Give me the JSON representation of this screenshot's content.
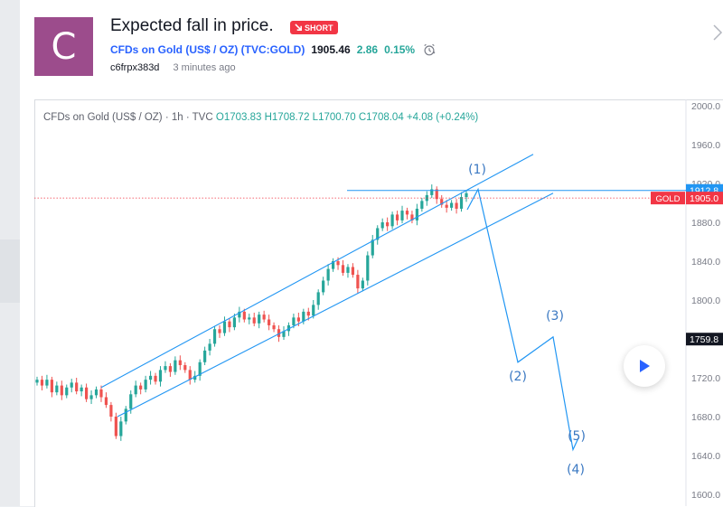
{
  "idea": {
    "avatar_letter": "C",
    "title": "Expected fall in price.",
    "badge": "SHORT",
    "badge_icon": "arrow-down-right-icon",
    "symbol": "CFDs on Gold (US$ / OZ) (TVC:GOLD)",
    "price": "1905.46",
    "change": "2.86",
    "change_pct": "0.15%",
    "author": "c6frpx383d",
    "time": "3 minutes ago"
  },
  "colors": {
    "up": "#26a69a",
    "down": "#ef5350",
    "line": "#2196f3",
    "wave_label": "#3a78c2",
    "price_tag": "#f23645",
    "accent": "#2962ff",
    "badge": "#f23645"
  },
  "chart_data": {
    "type": "candlestick",
    "instrument": "CFDs on Gold (US$ / OZ) · 1h · TVC",
    "ohlc": {
      "o": "O1703.83",
      "h": "H1708.72",
      "l": "L1700.70",
      "c": "C1708.04",
      "chg": "+4.08 (+0.24%)"
    },
    "y_axis": {
      "ticks": [
        "2000.0",
        "1960.0",
        "1920.0",
        "1880.0",
        "1840.0",
        "1800.0",
        "1760.0",
        "1720.0",
        "1680.0",
        "1640.0",
        "1600.0"
      ],
      "range": [
        1600,
        2000
      ]
    },
    "price_labels": [
      {
        "value": "1912.8",
        "color": "#2196f3",
        "text_color": "#ffffff"
      },
      {
        "value": "1905.0",
        "color": "#f23645",
        "text_color": "#ffffff",
        "tag": "GOLD"
      },
      {
        "value": "1759.8",
        "color": "#131722",
        "text_color": "#ffffff"
      }
    ],
    "close_path": [
      1718,
      1712,
      1718,
      1705,
      1712,
      1702,
      1710,
      1715,
      1706,
      1710,
      1698,
      1702,
      1708,
      1700,
      1692,
      1680,
      1660,
      1675,
      1688,
      1703,
      1712,
      1708,
      1718,
      1722,
      1716,
      1728,
      1732,
      1726,
      1738,
      1733,
      1728,
      1718,
      1722,
      1736,
      1748,
      1755,
      1770,
      1766,
      1778,
      1772,
      1782,
      1788,
      1780,
      1782,
      1776,
      1785,
      1780,
      1774,
      1770,
      1762,
      1768,
      1774,
      1782,
      1778,
      1788,
      1784,
      1795,
      1808,
      1820,
      1832,
      1840,
      1836,
      1828,
      1834,
      1826,
      1812,
      1820,
      1846,
      1862,
      1874,
      1880,
      1876,
      1888,
      1882,
      1892,
      1888,
      1882,
      1894,
      1902,
      1908,
      1914,
      1904,
      1898,
      1895,
      1900,
      1894,
      1906,
      1910
    ],
    "forecast_path": [
      {
        "label": "",
        "value": 1893
      },
      {
        "label": "(1)",
        "value": 1914
      },
      {
        "label": "(2)",
        "value": 1736
      },
      {
        "label": "(3)",
        "value": 1762
      },
      {
        "label": "(4)",
        "value": 1646
      },
      {
        "label": "(5)",
        "value": 1658
      }
    ],
    "wave_labels": [
      "(1)",
      "(2)",
      "(3)",
      "(5)",
      "(4)"
    ]
  }
}
